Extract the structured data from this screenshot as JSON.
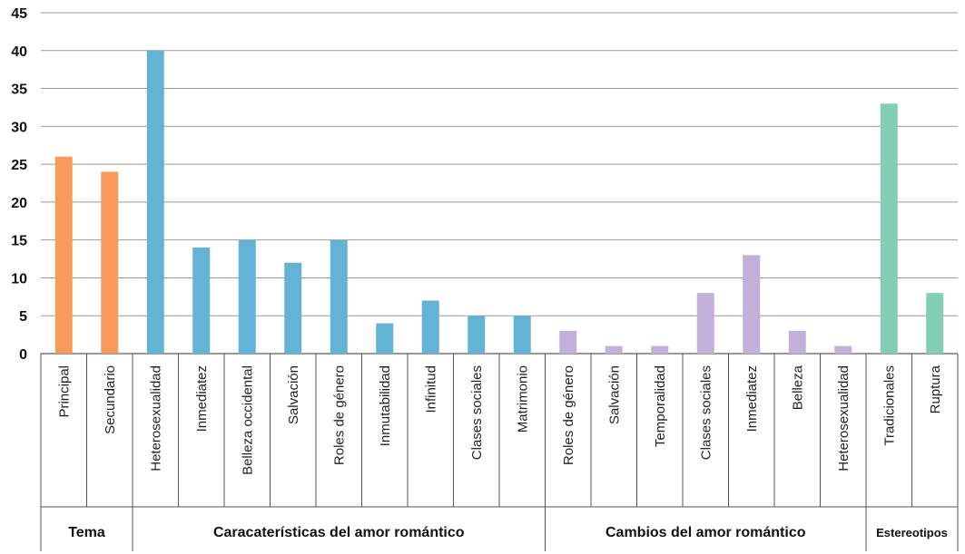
{
  "chart_data": {
    "type": "bar",
    "ylim": [
      0,
      45
    ],
    "yticks": [
      "0",
      "5",
      "10",
      "15",
      "20",
      "25",
      "30",
      "35",
      "40",
      "45"
    ],
    "grid": true,
    "categories": [
      "Principal",
      "Secundario",
      "Heterosexualidad",
      "Inmediatez",
      "Belleza occidental",
      "Salvación",
      "Roles de género",
      "Inmutabilidad",
      "Infinitud",
      "Clases sociales",
      "Matrimonio",
      "Roles de género",
      "Salvación",
      "Temporalidad",
      "Clases sociales",
      "Inmediatez",
      "Belleza",
      "Heterosexualidad",
      "Tradicionales",
      "Ruptura"
    ],
    "values": [
      26,
      24,
      40,
      14,
      15,
      12,
      15,
      4,
      7,
      5,
      5,
      3,
      1,
      1,
      8,
      13,
      3,
      1,
      33,
      8
    ],
    "groups": [
      {
        "label": "Tema",
        "start": 0,
        "count": 2,
        "color": "#F79A5C"
      },
      {
        "label": "Caracaterísticas del amor romántico",
        "start": 2,
        "count": 9,
        "color": "#63B3D6"
      },
      {
        "label": "Cambios del amor romántico",
        "start": 11,
        "count": 7,
        "color": "#C3B0DA"
      },
      {
        "label": "Estereotipos",
        "start": 18,
        "count": 2,
        "color": "#82CFB4"
      }
    ]
  }
}
